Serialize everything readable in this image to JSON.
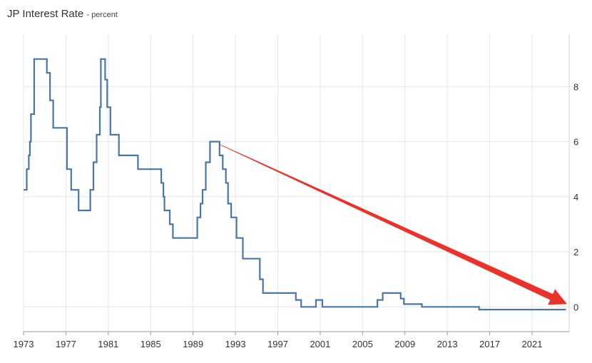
{
  "page": {
    "title": "JP Interest Rate",
    "subtitle": "- percent"
  },
  "chart_data": {
    "type": "line",
    "title": "JP Interest Rate",
    "subtitle": "- percent",
    "xlabel": "",
    "ylabel": "",
    "x_ticks": [
      "1973",
      "1977",
      "1981",
      "1985",
      "1989",
      "1993",
      "1997",
      "2001",
      "2005",
      "2009",
      "2013",
      "2017",
      "2021"
    ],
    "y_ticks": [
      "0",
      "2",
      "4",
      "6",
      "8"
    ],
    "xlim": [
      1973,
      2024.5
    ],
    "ylim": [
      -0.9,
      9.9
    ],
    "grid": true,
    "line_color": "#4a76a8",
    "annotation": {
      "type": "arrow",
      "color": "#e8322a",
      "from": [
        1991.5,
        5.9
      ],
      "to": [
        2024.3,
        0.1
      ]
    },
    "series": [
      {
        "step": true,
        "points": [
          [
            1973.0,
            4.25
          ],
          [
            1973.3,
            5.0
          ],
          [
            1973.5,
            5.5
          ],
          [
            1973.6,
            6.0
          ],
          [
            1973.7,
            7.0
          ],
          [
            1974.0,
            9.0
          ],
          [
            1975.2,
            8.5
          ],
          [
            1975.5,
            7.5
          ],
          [
            1975.8,
            6.5
          ],
          [
            1977.1,
            5.0
          ],
          [
            1977.5,
            4.25
          ],
          [
            1978.2,
            3.5
          ],
          [
            1979.3,
            4.25
          ],
          [
            1979.6,
            5.25
          ],
          [
            1979.9,
            6.25
          ],
          [
            1980.2,
            7.25
          ],
          [
            1980.3,
            9.0
          ],
          [
            1980.7,
            8.25
          ],
          [
            1980.9,
            7.25
          ],
          [
            1981.2,
            6.25
          ],
          [
            1982.0,
            5.5
          ],
          [
            1983.8,
            5.0
          ],
          [
            1986.0,
            4.5
          ],
          [
            1986.2,
            4.0
          ],
          [
            1986.3,
            3.5
          ],
          [
            1986.8,
            3.0
          ],
          [
            1987.1,
            2.5
          ],
          [
            1989.4,
            3.25
          ],
          [
            1989.7,
            3.75
          ],
          [
            1989.9,
            4.25
          ],
          [
            1990.2,
            5.25
          ],
          [
            1990.6,
            6.0
          ],
          [
            1991.5,
            5.5
          ],
          [
            1991.8,
            5.0
          ],
          [
            1992.1,
            4.5
          ],
          [
            1992.3,
            3.75
          ],
          [
            1992.6,
            3.25
          ],
          [
            1993.1,
            2.5
          ],
          [
            1993.7,
            1.75
          ],
          [
            1995.3,
            1.0
          ],
          [
            1995.6,
            0.5
          ],
          [
            1998.7,
            0.25
          ],
          [
            1999.2,
            0.0
          ],
          [
            2000.6,
            0.25
          ],
          [
            2001.2,
            0.0
          ],
          [
            2006.4,
            0.25
          ],
          [
            2006.9,
            0.5
          ],
          [
            2008.6,
            0.3
          ],
          [
            2008.9,
            0.1
          ],
          [
            2010.6,
            0.0
          ],
          [
            2016.0,
            -0.1
          ],
          [
            2024.2,
            -0.1
          ]
        ]
      }
    ]
  }
}
